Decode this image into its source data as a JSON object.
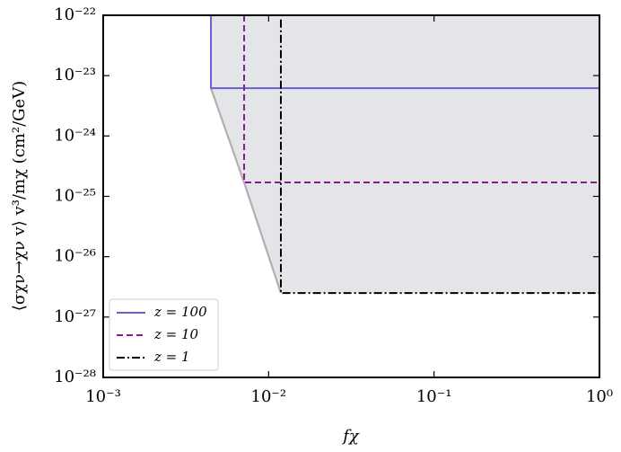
{
  "chart_data": {
    "type": "line",
    "xlabel": "fχ",
    "ylabel": "⟨σχν→χν v⟩ v³/mχ (cm²/GeV)",
    "xscale": "log",
    "yscale": "log",
    "xlim": [
      0.001,
      1
    ],
    "ylim": [
      1e-28,
      1e-22
    ],
    "xticks": [
      {
        "value": 0.001,
        "label": "10⁻³"
      },
      {
        "value": 0.01,
        "label": "10⁻²"
      },
      {
        "value": 0.1,
        "label": "10⁻¹"
      },
      {
        "value": 1,
        "label": "10⁰"
      }
    ],
    "yticks": [
      {
        "value": 1e-28,
        "label": "10⁻²⁸"
      },
      {
        "value": 1e-27,
        "label": "10⁻²⁷"
      },
      {
        "value": 1e-26,
        "label": "10⁻²⁶"
      },
      {
        "value": 1e-25,
        "label": "10⁻²⁵"
      },
      {
        "value": 1e-24,
        "label": "10⁻²⁴"
      },
      {
        "value": 1e-23,
        "label": "10⁻²³"
      },
      {
        "value": 1e-22,
        "label": "10⁻²²"
      }
    ],
    "legend": "lower left",
    "series": [
      {
        "name": "z = 100",
        "color": "#6a5fd0",
        "style": "solid",
        "x": [
          0.00448,
          0.00448,
          1
        ],
        "values": [
          1e-22,
          6.2e-24,
          6.2e-24
        ]
      },
      {
        "name": "z = 10",
        "color": "#8b1a8b",
        "style": "dashed",
        "x": [
          0.00711,
          0.00711,
          1
        ],
        "values": [
          1e-22,
          1.7e-25,
          1.7e-25
        ]
      },
      {
        "name": "z = 1",
        "color": "#000000",
        "style": "dashdot",
        "x": [
          0.01186,
          0.01186,
          1
        ],
        "values": [
          8.5e-23,
          2.5e-27,
          2.5e-27
        ]
      }
    ]
  }
}
